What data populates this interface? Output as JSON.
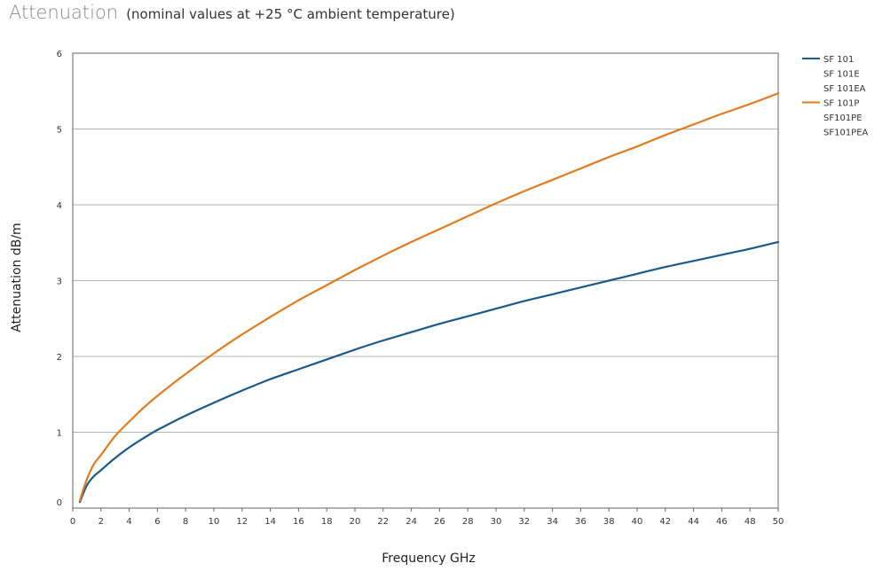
{
  "page": {
    "title": "Attenuation",
    "subtitle": "(nominal values at +25 °C ambient temperature)"
  },
  "chart_data": {
    "type": "line",
    "xlabel": "Frequency GHz",
    "ylabel": "Attenuation dB/m",
    "xlim": [
      0,
      50
    ],
    "ylim": [
      0,
      6
    ],
    "x_ticks": [
      0,
      2,
      4,
      6,
      8,
      10,
      12,
      14,
      16,
      18,
      20,
      22,
      24,
      26,
      28,
      30,
      32,
      34,
      36,
      38,
      40,
      42,
      44,
      46,
      48,
      50
    ],
    "y_ticks": [
      0,
      1,
      2,
      3,
      4,
      5,
      6
    ],
    "grid": "horizontal",
    "legend_position": "top-right",
    "series": [
      {
        "labels": [
          "SF 101",
          "SF 101E",
          "SF 101EA"
        ],
        "color": "#1a5a8a",
        "x": [
          0.5,
          1,
          1.5,
          2,
          3,
          4,
          5,
          6,
          8,
          10,
          12,
          14,
          16,
          18,
          20,
          22,
          24,
          26,
          28,
          30,
          32,
          34,
          36,
          38,
          40,
          42,
          44,
          46,
          48,
          50
        ],
        "y": [
          0.08,
          0.3,
          0.42,
          0.5,
          0.66,
          0.8,
          0.92,
          1.03,
          1.22,
          1.39,
          1.55,
          1.7,
          1.83,
          1.96,
          2.09,
          2.21,
          2.32,
          2.43,
          2.53,
          2.63,
          2.73,
          2.82,
          2.91,
          3.0,
          3.09,
          3.18,
          3.26,
          3.34,
          3.42,
          3.51
        ]
      },
      {
        "labels": [
          "SF 101P",
          "SF101PE",
          "SF101PEA"
        ],
        "color": "#e07b20",
        "x": [
          0.5,
          1,
          1.5,
          2,
          3,
          4,
          5,
          6,
          8,
          10,
          12,
          14,
          16,
          18,
          20,
          22,
          24,
          26,
          28,
          30,
          32,
          34,
          36,
          38,
          40,
          42,
          44,
          46,
          48,
          50
        ],
        "y": [
          0.1,
          0.38,
          0.58,
          0.7,
          0.95,
          1.14,
          1.32,
          1.48,
          1.77,
          2.04,
          2.29,
          2.52,
          2.74,
          2.94,
          3.14,
          3.33,
          3.51,
          3.68,
          3.85,
          4.02,
          4.18,
          4.33,
          4.48,
          4.63,
          4.77,
          4.92,
          5.06,
          5.2,
          5.33,
          5.47
        ]
      }
    ]
  }
}
